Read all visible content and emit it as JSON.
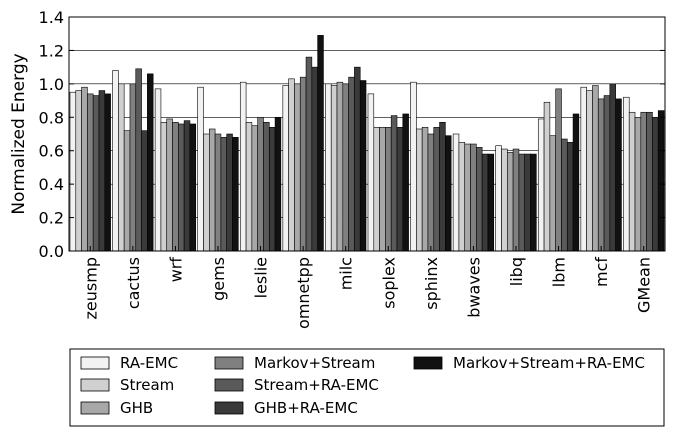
{
  "chart_data": {
    "type": "bar",
    "title": "",
    "xlabel": "",
    "ylabel": "Normalized Energy",
    "ylim": [
      0.0,
      1.4
    ],
    "yticks": [
      "0.0",
      "0.2",
      "0.4",
      "0.6",
      "0.8",
      "1.0",
      "1.2",
      "1.4"
    ],
    "grid": "horizontal",
    "legend_position": "bottom",
    "categories": [
      "zeusmp",
      "cactus",
      "wrf",
      "gems",
      "leslie",
      "omnetpp",
      "milc",
      "soplex",
      "sphinx",
      "bwaves",
      "libq",
      "lbm",
      "mcf",
      "GMean"
    ],
    "series": [
      {
        "name": "RA-EMC",
        "color": "#f2f2f2",
        "values": [
          0.95,
          1.08,
          0.97,
          0.98,
          1.01,
          0.99,
          1.0,
          0.94,
          1.01,
          0.7,
          0.63,
          0.79,
          0.98,
          0.92
        ]
      },
      {
        "name": "Stream",
        "color": "#d0d0d0",
        "values": [
          0.96,
          1.0,
          0.77,
          0.7,
          0.77,
          1.03,
          0.99,
          0.74,
          0.73,
          0.65,
          0.61,
          0.89,
          0.96,
          0.83
        ]
      },
      {
        "name": "GHB",
        "color": "#a8a8a8",
        "values": [
          0.98,
          0.72,
          0.79,
          0.73,
          0.75,
          1.0,
          1.01,
          0.74,
          0.74,
          0.64,
          0.59,
          0.69,
          0.99,
          0.8
        ]
      },
      {
        "name": "Markov+Stream",
        "color": "#808080",
        "values": [
          0.94,
          1.0,
          0.77,
          0.7,
          0.8,
          1.04,
          1.0,
          0.74,
          0.7,
          0.64,
          0.61,
          0.97,
          0.91,
          0.83
        ]
      },
      {
        "name": "Stream+RA-EMC",
        "color": "#5a5a5a",
        "values": [
          0.93,
          1.09,
          0.76,
          0.68,
          0.77,
          1.16,
          1.04,
          0.81,
          0.74,
          0.62,
          0.58,
          0.67,
          0.93,
          0.83
        ]
      },
      {
        "name": "GHB+RA-EMC",
        "color": "#3a3a3a",
        "values": [
          0.96,
          0.72,
          0.78,
          0.7,
          0.74,
          1.1,
          1.1,
          0.74,
          0.77,
          0.58,
          0.58,
          0.65,
          1.0,
          0.8
        ]
      },
      {
        "name": "Markov+Stream+RA-EMC",
        "color": "#111111",
        "values": [
          0.94,
          1.06,
          0.76,
          0.68,
          0.8,
          1.29,
          1.02,
          0.82,
          0.69,
          0.58,
          0.58,
          0.82,
          0.91,
          0.84
        ]
      }
    ]
  }
}
